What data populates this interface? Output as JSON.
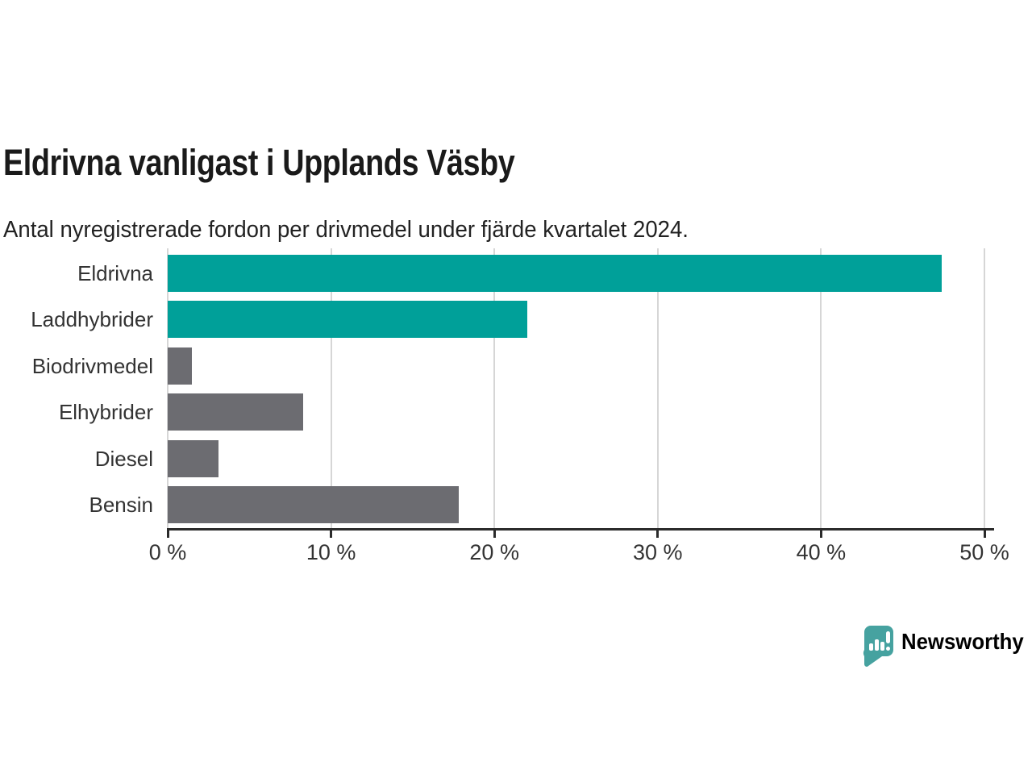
{
  "chart_data": {
    "type": "bar",
    "orientation": "horizontal",
    "title": "Eldrivna vanligast i Upplands Väsby",
    "subtitle": "Antal nyregistrerade fordon per drivmedel under fjärde kvartalet 2024.",
    "categories": [
      "Eldrivna",
      "Laddhybrider",
      "Biodrivmedel",
      "Elhybrider",
      "Diesel",
      "Bensin"
    ],
    "values": [
      47.4,
      22.0,
      1.5,
      8.3,
      3.1,
      17.8
    ],
    "unit": "%",
    "bar_colors": [
      "#00a099",
      "#00a099",
      "#6c6c71",
      "#6c6c71",
      "#6c6c71",
      "#6c6c71"
    ],
    "xlabel": "",
    "ylabel": "",
    "xlim": [
      0,
      50
    ],
    "x_ticks": [
      0,
      10,
      20,
      30,
      40,
      50
    ],
    "x_tick_labels": [
      "0 %",
      "10 %",
      "20 %",
      "30 %",
      "40 %",
      "50 %"
    ],
    "grid": "vertical",
    "legend": "none",
    "colors": {
      "teal": "#00a099",
      "gray": "#6c6c71",
      "gridline": "#d6d6d6",
      "axis": "#2b2b2b",
      "label": "#333333",
      "title": "#1a1a1a"
    }
  },
  "footer": {
    "brand": "Newsworthy",
    "brand_color": "#3fa1a1",
    "logo_icon": "newsworthy-speech-bubble-chart-icon"
  }
}
